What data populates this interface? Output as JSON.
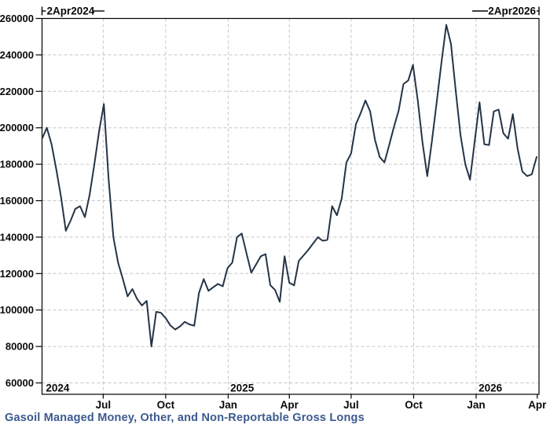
{
  "chart_data": {
    "type": "line",
    "title": "Gasoil Managed Money, Other, and Non-Reportable Gross Longs",
    "xlabel": "",
    "ylabel": "",
    "start_annotation": "2Apr2024",
    "end_annotation": "2Apr2026",
    "frequency": "weekly",
    "grid": true,
    "legend_position": "none",
    "ylim": [
      53750,
      260000
    ],
    "x_span_weeks": 104.5,
    "y_ticks": [
      60000,
      80000,
      100000,
      120000,
      140000,
      160000,
      180000,
      200000,
      220000,
      240000,
      260000
    ],
    "x_ticks": [
      {
        "label": "Jul",
        "week": 12.86
      },
      {
        "label": "Oct",
        "week": 26.0
      },
      {
        "label": "Jan",
        "week": 39.14
      },
      {
        "label": "Apr",
        "week": 52.0
      },
      {
        "label": "Jul",
        "week": 65.0
      },
      {
        "label": "Oct",
        "week": 78.14
      },
      {
        "label": "Jan",
        "week": 91.28
      },
      {
        "label": "Apr",
        "week": 104.14
      }
    ],
    "year_labels": [
      {
        "label": "2024",
        "week": 0.8
      },
      {
        "label": "2025",
        "week": 39.6
      },
      {
        "label": "2026",
        "week": 91.8
      }
    ],
    "values": [
      194000,
      200000,
      191000,
      177000,
      162000,
      143500,
      149000,
      155500,
      157000,
      151000,
      163000,
      180000,
      198000,
      213000,
      172000,
      140000,
      126000,
      117000,
      107500,
      111500,
      106000,
      102500,
      105000,
      80000,
      99000,
      98500,
      95500,
      91500,
      89300,
      91000,
      93500,
      92100,
      91400,
      109300,
      117000,
      110500,
      112500,
      114300,
      113000,
      123000,
      126000,
      140000,
      142000,
      131000,
      120500,
      125000,
      129500,
      130700,
      113600,
      111000,
      104500,
      129500,
      115000,
      113500,
      127000,
      130000,
      133000,
      136500,
      140000,
      138000,
      138500,
      157000,
      152000,
      161000,
      181000,
      186000,
      202000,
      208000,
      215000,
      209000,
      193500,
      184000,
      181000,
      190500,
      200500,
      209500,
      224000,
      226000,
      234500,
      215000,
      192000,
      173500,
      193000,
      214500,
      236000,
      256500,
      246000,
      220000,
      196000,
      180000,
      171500,
      193000,
      214000,
      191000,
      190500,
      209000,
      210000,
      197000,
      194000,
      207500,
      188500,
      176000,
      173500,
      174500,
      184000
    ],
    "colors": {
      "line": "#243447",
      "grid": "#c6c6c6",
      "axis": "#000000",
      "tick_text": "#0a0a0a",
      "title": "#3b5a8f"
    }
  }
}
